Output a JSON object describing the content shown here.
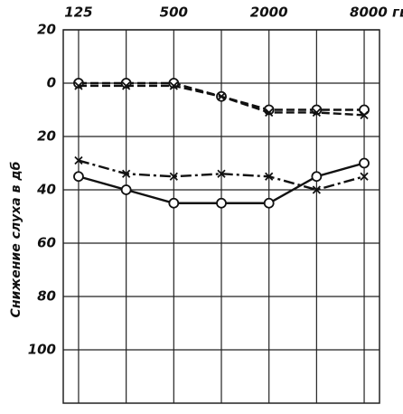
{
  "chart_data": {
    "type": "line",
    "y_label": "Снижение слуха в дб",
    "x": [
      125,
      250,
      500,
      1000,
      2000,
      4000,
      8000
    ],
    "x_log": true,
    "xlim": [
      100,
      10000
    ],
    "xticks": [
      125,
      {
        "value": 250,
        "label": null
      },
      500,
      {
        "value": 1000,
        "label": null
      },
      2000,
      {
        "value": 4000,
        "label": null
      },
      {
        "value": 8000,
        "label": "8000 гц"
      }
    ],
    "ylim": [
      -20,
      120
    ],
    "y_inverted": true,
    "yticks": [
      {
        "value": -20,
        "label": "20"
      },
      0,
      20,
      40,
      60,
      80,
      100
    ],
    "grid": true,
    "series": [
      {
        "color": "#111",
        "dash": "dashed",
        "marker": "circle",
        "values": [
          0,
          0,
          0,
          5,
          10,
          10,
          10
        ]
      },
      {
        "color": "#111",
        "dash": "dashed",
        "marker": "x",
        "values": [
          1,
          1,
          1,
          5,
          11,
          11,
          12
        ]
      },
      {
        "color": "#111",
        "dash": "solid",
        "marker": "circle",
        "values": [
          35,
          40,
          45,
          45,
          45,
          35,
          30
        ]
      },
      {
        "color": "#111",
        "dash": "dashdot",
        "marker": "x",
        "values": [
          29,
          34,
          35,
          34,
          35,
          40,
          35
        ]
      }
    ]
  }
}
